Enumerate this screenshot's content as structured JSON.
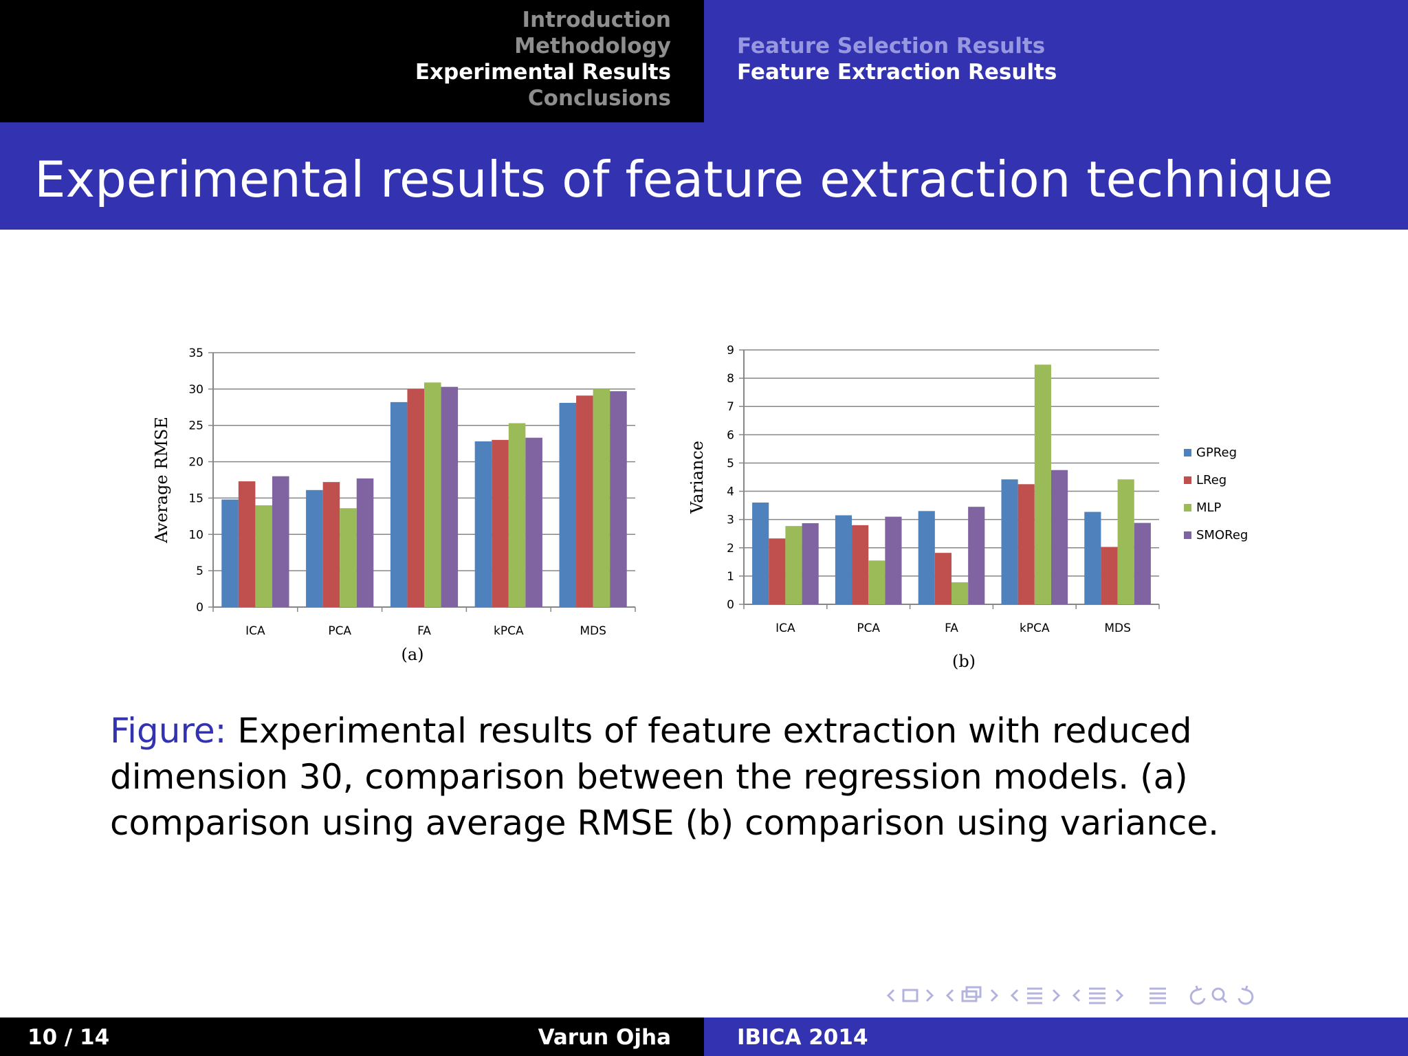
{
  "header": {
    "sections": [
      "Introduction",
      "Methodology",
      "Experimental Results",
      "Conclusions"
    ],
    "active_section": 2,
    "subsections": [
      "Feature Selection Results",
      "Feature Extraction Results"
    ],
    "active_subsection": 1
  },
  "slide": {
    "title": "Experimental results of feature extraction technique",
    "caption_label": "Figure:",
    "caption_text": " Experimental results of feature extraction with reduced dimension 30, comparison between the regression models. (a) comparison using average RMSE (b) comparison using variance."
  },
  "footer": {
    "page": "10 / 14",
    "author": "Varun Ojha",
    "event": "IBICA 2014"
  },
  "colors": {
    "header_blue": "#3333b2",
    "GPReg": "#4f81bd",
    "LReg": "#c0504d",
    "MLP": "#9bbb59",
    "SMOReg": "#8064a2"
  },
  "chart_data": [
    {
      "type": "bar",
      "panel_label": "(a)",
      "title": "",
      "xlabel": "",
      "ylabel": "Average RMSE",
      "categories": [
        "ICA",
        "PCA",
        "FA",
        "kPCA",
        "MDS"
      ],
      "ylim": [
        0,
        35
      ],
      "yticks": [
        0,
        5,
        10,
        15,
        20,
        25,
        30,
        35
      ],
      "grid": true,
      "legend": "none",
      "series": [
        {
          "name": "GPReg",
          "values": [
            14.8,
            16.1,
            28.2,
            22.8,
            28.1
          ]
        },
        {
          "name": "LReg",
          "values": [
            17.3,
            17.2,
            30.0,
            23.0,
            29.1
          ]
        },
        {
          "name": "MLP",
          "values": [
            14.0,
            13.6,
            30.9,
            25.3,
            30.0
          ]
        },
        {
          "name": "SMOReg",
          "values": [
            18.0,
            17.7,
            30.3,
            23.3,
            29.7
          ]
        }
      ]
    },
    {
      "type": "bar",
      "panel_label": "(b)",
      "title": "",
      "xlabel": "",
      "ylabel": "Variance",
      "categories": [
        "ICA",
        "PCA",
        "FA",
        "kPCA",
        "MDS"
      ],
      "ylim": [
        0,
        9
      ],
      "yticks": [
        0,
        1,
        2,
        3,
        4,
        5,
        6,
        7,
        8,
        9
      ],
      "grid": true,
      "legend": "right",
      "series": [
        {
          "name": "GPReg",
          "values": [
            3.6,
            3.15,
            3.3,
            4.42,
            3.27
          ]
        },
        {
          "name": "LReg",
          "values": [
            2.33,
            2.8,
            1.82,
            4.25,
            2.03
          ]
        },
        {
          "name": "MLP",
          "values": [
            2.77,
            1.55,
            0.78,
            8.48,
            4.42
          ]
        },
        {
          "name": "SMOReg",
          "values": [
            2.87,
            3.1,
            3.45,
            4.75,
            2.88
          ]
        }
      ]
    }
  ]
}
